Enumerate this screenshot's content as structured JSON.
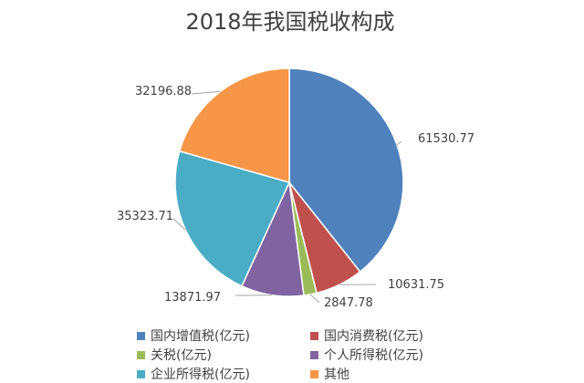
{
  "chart_data": {
    "type": "pie",
    "title": "2018年我国税收构成",
    "categories": [
      "国内增值税(亿元)",
      "国内消费税(亿元)",
      "关税(亿元)",
      "个人所得税(亿元)",
      "企业所得税(亿元)",
      "其他"
    ],
    "values": [
      61530.77,
      10631.75,
      2847.78,
      13871.97,
      35323.71,
      32196.88
    ],
    "value_labels": [
      "61530.77",
      "10631.75",
      "2847.78",
      "13871.97",
      "35323.71",
      "32196.88"
    ],
    "colors": [
      "#4F81BD",
      "#C0504D",
      "#9BBB59",
      "#8064A2",
      "#4BACC6",
      "#F79646"
    ],
    "legend_position": "bottom",
    "start_angle": "12 o'clock",
    "direction": "clockwise"
  }
}
